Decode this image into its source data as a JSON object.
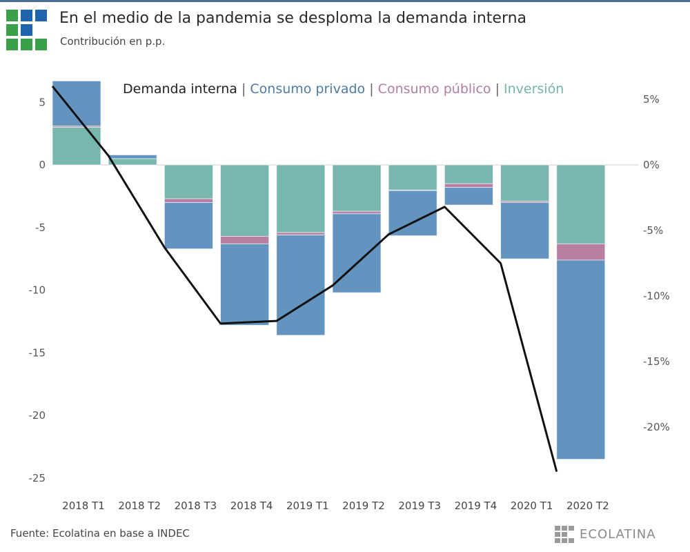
{
  "header": {
    "title": "En el medio de la pandemia se desploma la demanda interna",
    "subtitle": "Contribución en p.p."
  },
  "legend": {
    "items": [
      {
        "label": "Demanda interna",
        "color": "#222222"
      },
      {
        "label": "Consumo privado",
        "color": "#4f7aa3"
      },
      {
        "label": "Consumo público",
        "color": "#b07ea3"
      },
      {
        "label": "Inversión",
        "color": "#73b5aa"
      }
    ],
    "separator": "|"
  },
  "footer": {
    "source": "Fuente: Ecolatina en base a INDEC",
    "brand": "ECOLATINA"
  },
  "colors": {
    "privado": "#6393bf",
    "publico": "#b87fa3",
    "inversion": "#78b7ad",
    "line": "#111111",
    "topbar": "#4a6f97",
    "logo_green": "#3aa14a",
    "logo_blue": "#1f65ad"
  },
  "chart_data": {
    "type": "bar",
    "stacked": true,
    "title": "En el medio de la pandemia se desploma la demanda interna",
    "subtitle": "Contribución en p.p.",
    "categories": [
      "2018 T1",
      "2018 T2",
      "2018 T3",
      "2018 T4",
      "2019 T1",
      "2019 T2",
      "2019 T3",
      "2019 T4",
      "2020 T1",
      "2020 T2"
    ],
    "series": [
      {
        "name": "Inversión",
        "axis": "left",
        "values": [
          3.0,
          0.5,
          -2.7,
          -5.7,
          -5.4,
          -3.7,
          -2.0,
          -1.5,
          -2.9,
          -6.3
        ]
      },
      {
        "name": "Consumo público",
        "axis": "left",
        "values": [
          0.1,
          0.0,
          -0.3,
          -0.6,
          -0.2,
          -0.2,
          -0.05,
          -0.3,
          -0.1,
          -1.3
        ]
      },
      {
        "name": "Consumo privado",
        "axis": "left",
        "values": [
          3.6,
          0.3,
          -3.7,
          -6.5,
          -8.0,
          -6.3,
          -3.6,
          -1.4,
          -4.5,
          -15.9
        ]
      }
    ],
    "line_series": {
      "name": "Demanda interna",
      "type": "line",
      "axis": "right",
      "unit": "%",
      "values": [
        6.0,
        0.7,
        -6.3,
        -12.1,
        -11.9,
        -9.2,
        -5.3,
        -3.2,
        -7.5,
        -23.4
      ]
    },
    "left_axis": {
      "ticks": [
        5,
        0,
        -5,
        -10,
        -15,
        -20,
        -25
      ],
      "tick_labels": [
        "5",
        "0",
        "-5",
        "-10",
        "-15",
        "-20",
        "-25"
      ],
      "ylim": [
        -25,
        6.8
      ]
    },
    "right_axis": {
      "ticks": [
        5,
        0,
        -5,
        -10,
        -15,
        -20
      ],
      "tick_labels": [
        "5%",
        "0%",
        "-5%",
        "-10%",
        "-15%",
        "-20%"
      ],
      "ylim": [
        -24,
        6.3
      ]
    },
    "xlabel": "",
    "ylabel": "",
    "grid": false,
    "legend_position": "top"
  }
}
